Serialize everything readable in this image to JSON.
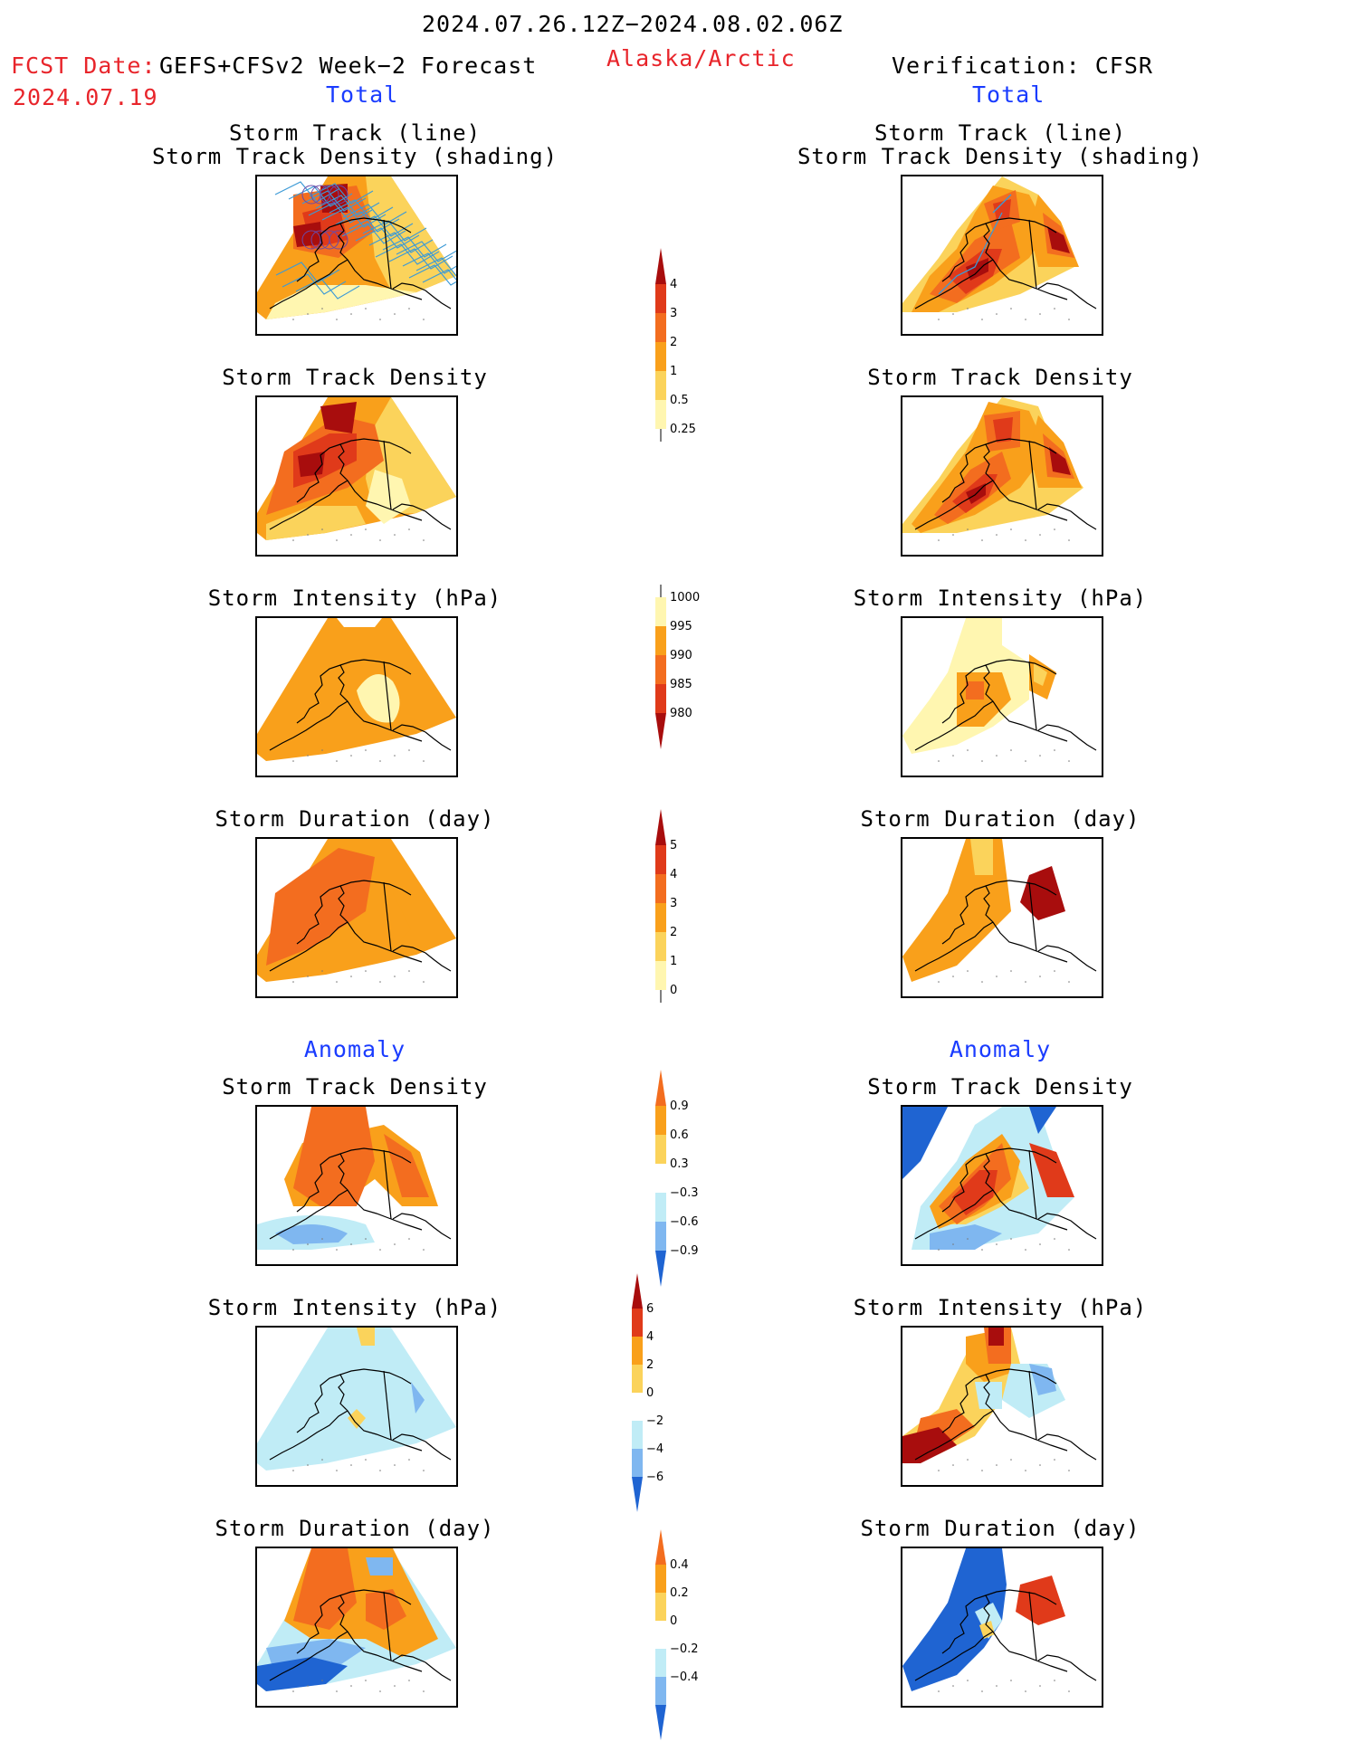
{
  "header": {
    "date_range": "2024.07.26.12Z−2024.08.02.06Z",
    "fcst_label": "FCST Date:",
    "fcst_model": "GEFS+CFSv2 Week−2 Forecast",
    "fcst_date": "2024.07.19",
    "region": "Alaska/Arctic",
    "verification": "Verification: CFSR"
  },
  "sections": {
    "total_left": "Total",
    "total_right": "Total",
    "anomaly_left": "Anomaly",
    "anomaly_right": "Anomaly"
  },
  "panel_titles": {
    "track_line": "Storm Track (line)",
    "track_density_shading": "Storm Track Density (shading)",
    "track_density": "Storm Track Density",
    "intensity": "Storm Intensity (hPa)",
    "duration": "Storm Duration (day)"
  },
  "colorbars": {
    "density": [
      "4",
      "3",
      "2",
      "1",
      "0.5",
      "0.25"
    ],
    "intensity": [
      "1000",
      "995",
      "990",
      "985",
      "980"
    ],
    "duration": [
      "5",
      "4",
      "3",
      "2",
      "1",
      "0"
    ],
    "anom_density": [
      "0.9",
      "0.6",
      "0.3",
      "−0.3",
      "−0.6",
      "−0.9"
    ],
    "anom_intensity": [
      "6",
      "4",
      "2",
      "0",
      "−2",
      "−4",
      "−6"
    ],
    "anom_duration": [
      "0.4",
      "0.2",
      "0",
      "−0.2",
      "−0.4"
    ]
  },
  "colors": {
    "c_lightyellow": "#fff6b0",
    "c_yellow": "#fbd35b",
    "c_orange": "#f9a01b",
    "c_darkorange": "#f36d1f",
    "c_red": "#e03a1a",
    "c_darkred": "#a80d0d",
    "c_lightblue": "#c0ecf6",
    "c_blue": "#7fb7f0",
    "c_darkblue": "#1f64d2",
    "track_line": "#3c9ad6"
  }
}
